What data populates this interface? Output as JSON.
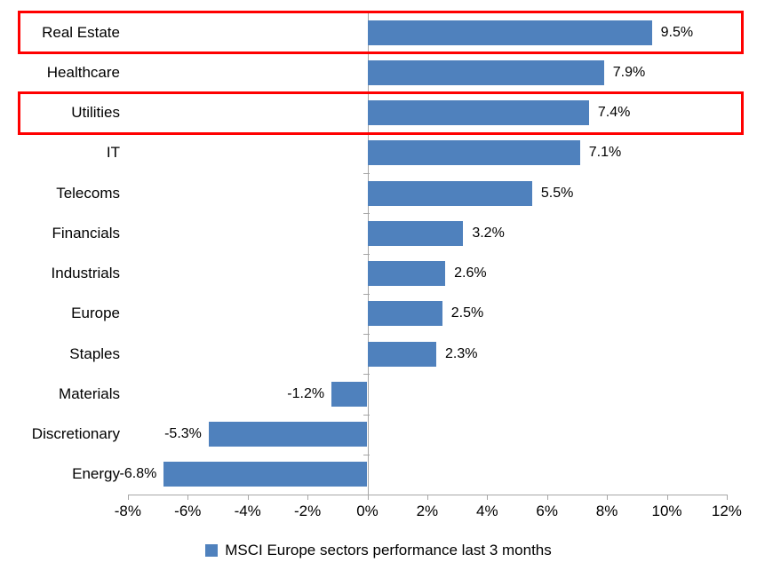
{
  "chart_data": {
    "type": "bar",
    "orientation": "horizontal",
    "title": "",
    "categories": [
      "Real Estate",
      "Healthcare",
      "Utilities",
      "IT",
      "Telecoms",
      "Financials",
      "Industrials",
      "Europe",
      "Staples",
      "Materials",
      "Discretionary",
      "Energy"
    ],
    "values": [
      9.5,
      7.9,
      7.4,
      7.1,
      5.5,
      3.2,
      2.6,
      2.5,
      2.3,
      -1.2,
      -5.3,
      -6.8
    ],
    "value_labels": [
      "9.5%",
      "7.9%",
      "7.4%",
      "7.1%",
      "5.5%",
      "3.2%",
      "2.6%",
      "2.5%",
      "2.3%",
      "-1.2%",
      "-5.3%",
      "-6.8%"
    ],
    "xlim": [
      -8,
      12
    ],
    "x_tick_values": [
      -8,
      -6,
      -4,
      -2,
      0,
      2,
      4,
      6,
      8,
      10,
      12
    ],
    "x_ticks": [
      "-8%",
      "-6%",
      "-4%",
      "-2%",
      "0%",
      "2%",
      "4%",
      "6%",
      "8%",
      "10%",
      "12%"
    ],
    "grid": false,
    "legend": "MSCI Europe sectors performance last 3 months",
    "legend_position": "bottom",
    "highlighted_categories": [
      "Real Estate",
      "Utilities"
    ],
    "colors": {
      "bar": "#4F81BD",
      "highlight_box": "#FF0000",
      "axis": "#A6A6A6",
      "text": "#000000",
      "background": "#FFFFFF"
    }
  }
}
